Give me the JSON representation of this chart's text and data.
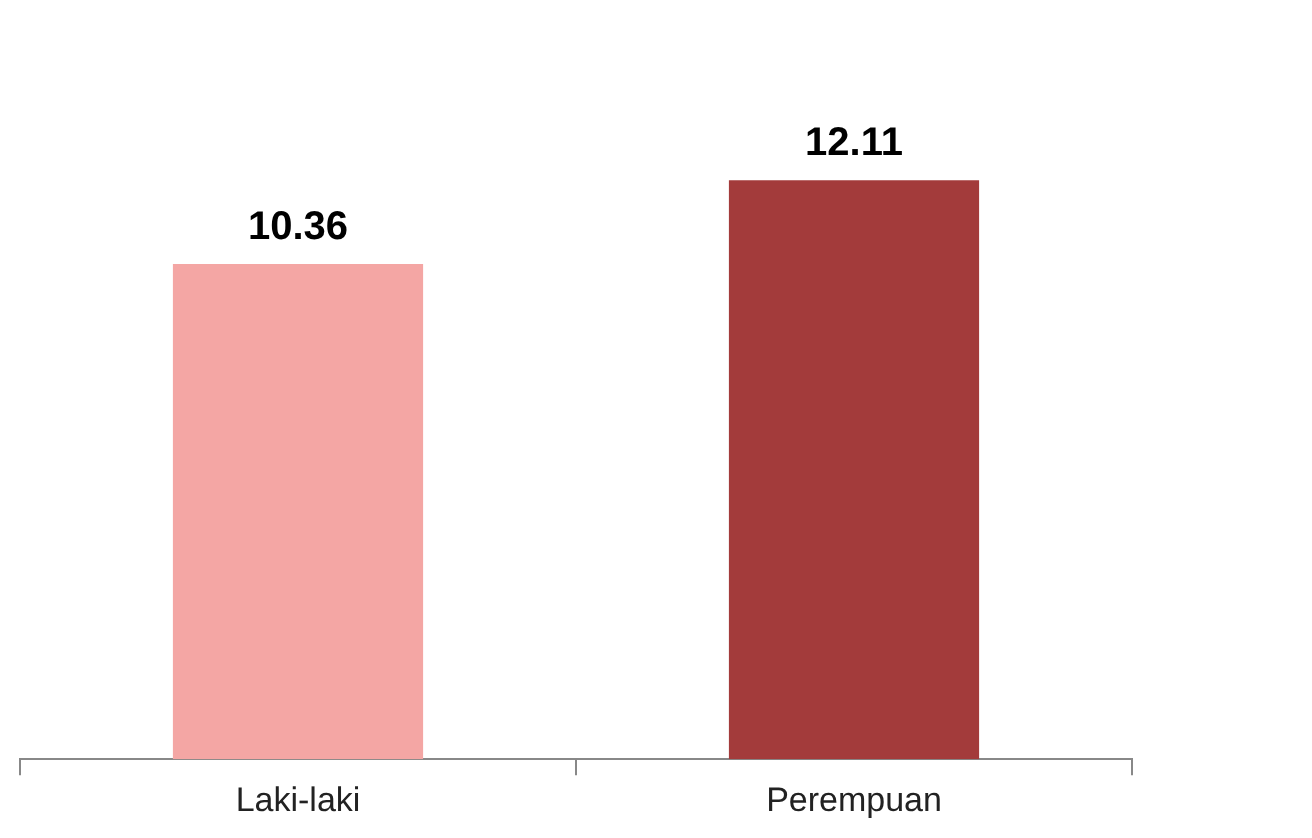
{
  "chart_data": {
    "type": "bar",
    "categories": [
      "Laki-laki",
      "Perempuan"
    ],
    "values": [
      10.36,
      12.11
    ],
    "colors": [
      "#f4a6a4",
      "#a33b3b"
    ],
    "data_labels": true,
    "grid": false,
    "legend": false
  }
}
